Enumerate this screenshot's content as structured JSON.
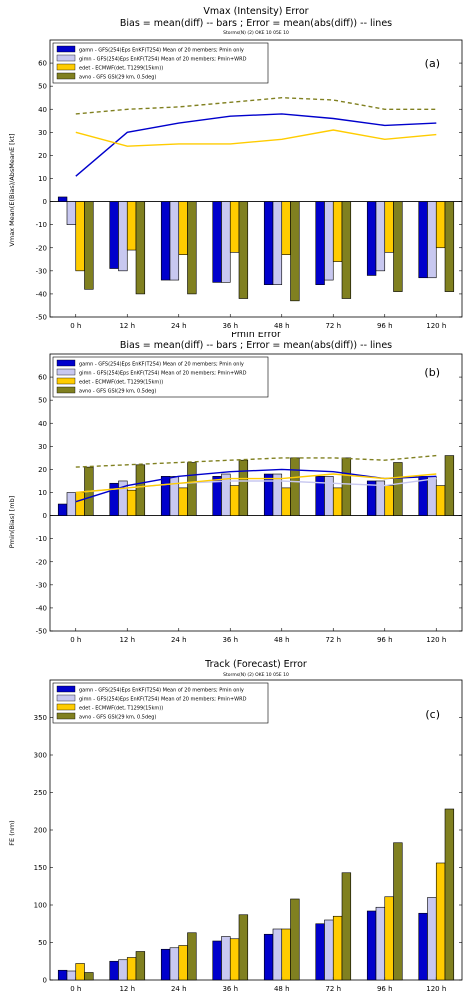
{
  "chart_data": [
    {
      "type": "bar",
      "title": "Vmax (Intensity) Error",
      "subtitle": "Bias = mean(diff) -- bars ; Error = mean(abs(diff)) -- lines",
      "storms_note": "Storms(N) (2)  OKE 10 05E 10",
      "panel_label": "(a)",
      "ylabel": "Vmax Mean(E(Bias)/AbsMeanE [kt]",
      "ylim": [
        -50,
        70
      ],
      "yticks": [
        60,
        50,
        40,
        30,
        20,
        10,
        0,
        -10,
        -20,
        -30,
        -40,
        -50
      ],
      "categories": [
        "0 h",
        "12 h",
        "24 h",
        "36 h",
        "48 h",
        "72 h",
        "96 h",
        "120 h"
      ],
      "legend": [
        "gamn - GFS(254)Eps EnKF(T254) Mean of 20 members; Pmin only",
        "gimn - GFS(254)Eps EnKF(T254) Mean of 20 members; Pmin+WRD",
        "edet - ECMWF(det, T1299(15km))",
        "avno - GFS GSI(29 km, 0.5deg)"
      ],
      "series": [
        {
          "name": "gamn",
          "color": "#0000cc",
          "values": [
            2,
            -29,
            -34,
            -35,
            -36,
            -36,
            -32,
            -33
          ],
          "error_line": [
            11,
            30,
            34,
            37,
            38,
            36,
            33,
            34
          ]
        },
        {
          "name": "gimn",
          "color": "#c8c8f0",
          "values": [
            -10,
            -30,
            -34,
            -35,
            -36,
            -34,
            -30,
            -33
          ],
          "error_line": null
        },
        {
          "name": "edet",
          "color": "#ffcc00",
          "values": [
            -30,
            -21,
            -23,
            -22,
            -23,
            -26,
            -22,
            -20
          ],
          "error_line": [
            30,
            24,
            25,
            25,
            27,
            31,
            27,
            29
          ]
        },
        {
          "name": "avno",
          "color": "#808020",
          "values": [
            -38,
            -40,
            -40,
            -42,
            -43,
            -42,
            -39,
            -39
          ],
          "error_line": [
            38,
            40,
            41,
            43,
            45,
            44,
            40,
            40
          ]
        }
      ]
    },
    {
      "type": "bar",
      "title": "Pmin Error",
      "subtitle": "Bias = mean(diff) -- bars ; Error = mean(abs(diff)) -- lines",
      "panel_label": "(b)",
      "ylabel": "Pmin(Bias) [mb]",
      "ylim": [
        -50,
        70
      ],
      "yticks": [
        60,
        50,
        40,
        30,
        20,
        10,
        0,
        -10,
        -20,
        -30,
        -40,
        -50
      ],
      "categories": [
        "0 h",
        "12 h",
        "24 h",
        "36 h",
        "48 h",
        "72 h",
        "96 h",
        "120 h"
      ],
      "legend": [
        "gamn - GFS(254)Eps EnKF(T254) Mean of 20 members; Pmin only",
        "gimn - GFS(254)Eps EnKF(T254) Mean of 20 members; Pmin+WRD",
        "edet - ECMWF(det, T1299(15km))",
        "avno - GFS GSI(29 km, 0.5deg)"
      ],
      "series": [
        {
          "name": "gamn",
          "color": "#0000cc",
          "values": [
            5,
            14,
            17,
            17,
            18,
            17,
            15,
            17
          ],
          "error_line": [
            6,
            13,
            17,
            19,
            20,
            19,
            16,
            17
          ]
        },
        {
          "name": "gimn",
          "color": "#c8c8f0",
          "values": [
            10,
            15,
            17,
            18,
            18,
            17,
            15,
            17
          ],
          "error_line": [
            10,
            12,
            14,
            15,
            15,
            14,
            13,
            16
          ]
        },
        {
          "name": "edet",
          "color": "#ffcc00",
          "values": [
            10,
            11,
            12,
            13,
            12,
            12,
            13,
            13
          ],
          "error_line": [
            10,
            12,
            14,
            16,
            16,
            18,
            16,
            18
          ]
        },
        {
          "name": "avno",
          "color": "#808020",
          "values": [
            21,
            22,
            23,
            24,
            25,
            25,
            23,
            26
          ],
          "error_line": [
            21,
            22,
            23,
            24,
            25,
            25,
            24,
            26
          ]
        }
      ]
    },
    {
      "type": "bar",
      "title": "Track (Forecast) Error",
      "storms_note": "Storms(N) (2)  OKE 10 05E 10",
      "panel_label": "(c)",
      "ylabel": "FE (nm)",
      "ylim": [
        0,
        400
      ],
      "yticks": [
        350,
        300,
        250,
        200,
        150,
        100,
        50,
        0
      ],
      "categories": [
        "0 h",
        "12 h",
        "24 h",
        "36 h",
        "48 h",
        "72 h",
        "96 h",
        "120 h"
      ],
      "legend": [
        "gamn - GFS(254)Eps EnKF(T254) Mean of 20 members; Pmin only",
        "gimn - GFS(254)Eps EnKF(T254) Mean of 20 members; Pmin+WRD",
        "edet - ECMWF(det, T1299(15km))",
        "avno - GFS GSI(29 km, 0.5deg)"
      ],
      "series": [
        {
          "name": "gamn",
          "color": "#0000cc",
          "values": [
            13,
            25,
            41,
            52,
            61,
            75,
            92,
            89
          ]
        },
        {
          "name": "gimn",
          "color": "#c8c8f0",
          "values": [
            12,
            27,
            43,
            58,
            68,
            80,
            97,
            110
          ]
        },
        {
          "name": "edet",
          "color": "#ffcc00",
          "values": [
            22,
            30,
            46,
            55,
            68,
            85,
            111,
            156
          ]
        },
        {
          "name": "avno",
          "color": "#808020",
          "values": [
            10,
            38,
            63,
            87,
            108,
            143,
            183,
            228
          ]
        }
      ]
    }
  ]
}
